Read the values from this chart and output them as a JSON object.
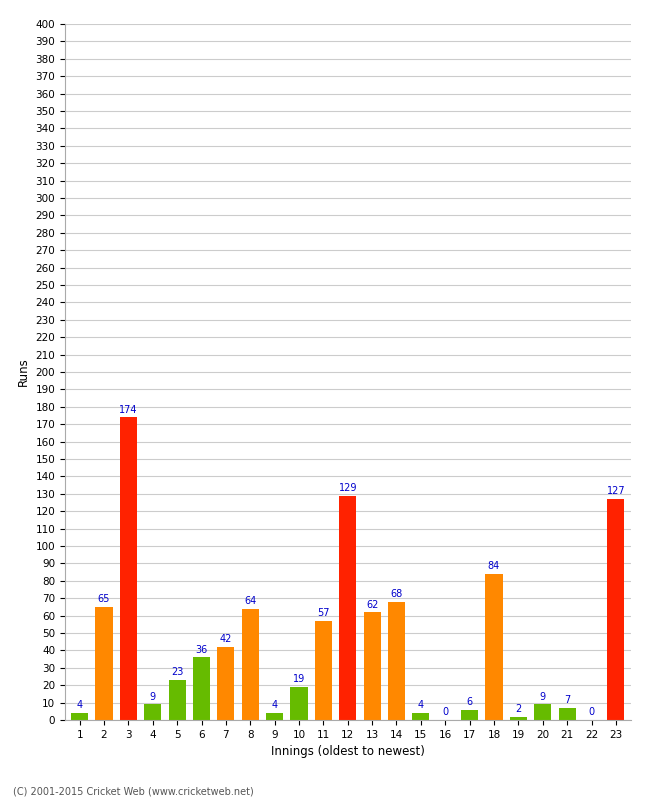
{
  "innings": [
    1,
    2,
    3,
    4,
    5,
    6,
    7,
    8,
    9,
    10,
    11,
    12,
    13,
    14,
    15,
    16,
    17,
    18,
    19,
    20,
    21,
    22,
    23
  ],
  "values": [
    4,
    65,
    174,
    9,
    23,
    36,
    42,
    64,
    4,
    19,
    57,
    129,
    62,
    68,
    4,
    0,
    6,
    84,
    2,
    9,
    7,
    0,
    127
  ],
  "colors": [
    "#66bb00",
    "#ff8800",
    "#ff2200",
    "#66bb00",
    "#66bb00",
    "#66bb00",
    "#ff8800",
    "#ff8800",
    "#66bb00",
    "#66bb00",
    "#ff8800",
    "#ff2200",
    "#ff8800",
    "#ff8800",
    "#66bb00",
    "#ff8800",
    "#66bb00",
    "#ff8800",
    "#66bb00",
    "#66bb00",
    "#66bb00",
    "#66bb00",
    "#ff2200"
  ],
  "xlabel": "Innings (oldest to newest)",
  "ylabel": "Runs",
  "ylim": [
    0,
    400
  ],
  "yticks": [
    0,
    10,
    20,
    30,
    40,
    50,
    60,
    70,
    80,
    90,
    100,
    110,
    120,
    130,
    140,
    150,
    160,
    170,
    180,
    190,
    200,
    210,
    220,
    230,
    240,
    250,
    260,
    270,
    280,
    290,
    300,
    310,
    320,
    330,
    340,
    350,
    360,
    370,
    380,
    390,
    400
  ],
  "label_color": "#0000cc",
  "bg_color": "#ffffff",
  "grid_color": "#cccccc",
  "footer": "(C) 2001-2015 Cricket Web (www.cricketweb.net)",
  "fig_width": 6.5,
  "fig_height": 8.0,
  "dpi": 100
}
